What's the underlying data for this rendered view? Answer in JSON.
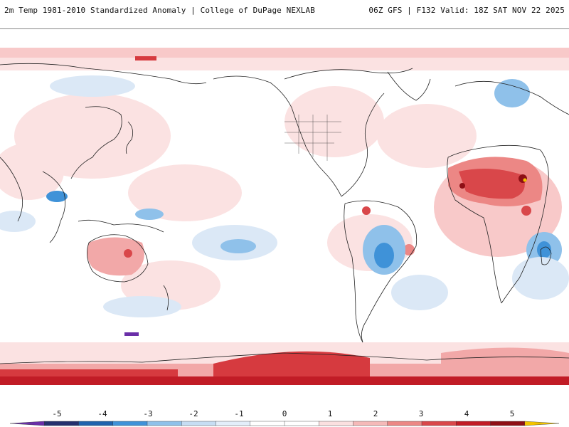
{
  "header": {
    "left_title": "2m Temp 1981-2010 Standardized Anomaly | College of DuPage NEXLAB",
    "right_title": "06Z GFS | F132 Valid: 18Z SAT NOV 22 2025"
  },
  "map": {
    "projection": "equirectangular global, centered Pacific",
    "field": "2m temperature standardized anomaly"
  },
  "colorbar": {
    "tick_labels": [
      "-5",
      "-4",
      "-3",
      "-2",
      "-1",
      "0",
      "1",
      "2",
      "3",
      "4",
      "5"
    ],
    "colors": [
      "#6a2fa8",
      "#24306e",
      "#1f63ad",
      "#3f92d8",
      "#8fc1ea",
      "#c6ddf3",
      "#e3eefa",
      "#ffffff",
      "#ffffff",
      "#fbe0e0",
      "#f5b9b8",
      "#ec8785",
      "#d9474a",
      "#c11c26",
      "#8e0f15",
      "#f2c300"
    ]
  },
  "colors": {
    "warm_light": "#fbe2e2",
    "warm_mid": "#f2a8a8",
    "warm_strong": "#d63a3f",
    "warm_extreme": "#8e0f15",
    "cool_light": "#dbe8f6",
    "cool_mid": "#8fc1ea",
    "cool_strong": "#3f92d8",
    "coast": "#222222"
  }
}
